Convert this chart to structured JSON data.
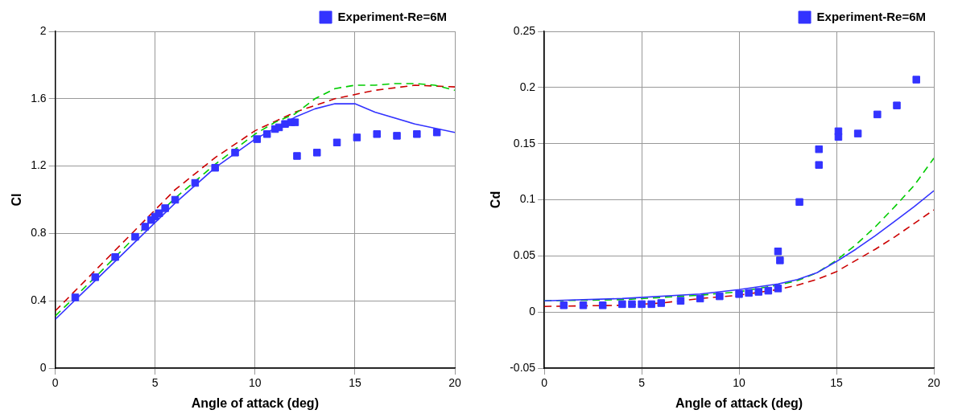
{
  "chart_data": [
    {
      "type": "line",
      "xlabel": "Angle of attack (deg)",
      "ylabel": "Cl",
      "xlim": [
        0,
        20
      ],
      "xticks": [
        0,
        5,
        10,
        15,
        20
      ],
      "ylim": [
        0,
        2
      ],
      "yticks": [
        0,
        0.4,
        0.8,
        1.2,
        1.6,
        2
      ],
      "grid": true,
      "legend": "top right",
      "series": [
        {
          "type": "scatter",
          "name": "Experiment-Re=6M",
          "color": "#3333ff",
          "marker": "square",
          "x": [
            1,
            2,
            3,
            4,
            4.5,
            4.8,
            5,
            5.2,
            5.5,
            6,
            7,
            8,
            9,
            10.1,
            10.6,
            11,
            11.2,
            11.5,
            11.8,
            12,
            12.1,
            13.1,
            14.1,
            15.1,
            16.1,
            17.1,
            18.1,
            19.1
          ],
          "values": [
            0.42,
            0.54,
            0.66,
            0.78,
            0.84,
            0.88,
            0.9,
            0.92,
            0.95,
            1.0,
            1.1,
            1.19,
            1.28,
            1.36,
            1.39,
            1.42,
            1.43,
            1.45,
            1.46,
            1.46,
            1.26,
            1.28,
            1.34,
            1.37,
            1.39,
            1.38,
            1.39,
            1.4
          ]
        },
        {
          "color": "#3333ff",
          "line_style": "solid",
          "x": [
            0,
            2,
            4,
            6,
            8,
            10,
            12,
            13,
            14,
            15,
            16,
            18,
            20
          ],
          "values": [
            0.29,
            0.52,
            0.75,
            0.98,
            1.19,
            1.36,
            1.49,
            1.54,
            1.57,
            1.57,
            1.52,
            1.45,
            1.4
          ]
        },
        {
          "color": "#00cc00",
          "line_style": "dashed",
          "x": [
            0,
            2,
            4,
            6,
            8,
            10,
            11,
            12,
            13,
            14,
            15,
            16,
            17,
            18,
            19,
            20
          ],
          "values": [
            0.31,
            0.54,
            0.78,
            1.01,
            1.21,
            1.39,
            1.46,
            1.51,
            1.6,
            1.66,
            1.68,
            1.68,
            1.69,
            1.69,
            1.68,
            1.65
          ]
        },
        {
          "color": "#cc0000",
          "line_style": "dashed",
          "x": [
            0,
            2,
            4,
            6,
            8,
            10,
            12,
            14,
            16,
            18,
            20
          ],
          "values": [
            0.34,
            0.58,
            0.82,
            1.06,
            1.25,
            1.41,
            1.52,
            1.6,
            1.65,
            1.68,
            1.67
          ]
        }
      ]
    },
    {
      "type": "line",
      "xlabel": "Angle of attack (deg)",
      "ylabel": "Cd",
      "xlim": [
        0,
        20
      ],
      "xticks": [
        0,
        5,
        10,
        15,
        20
      ],
      "ylim": [
        -0.05,
        0.25
      ],
      "yticks": [
        -0.05,
        0,
        0.05,
        0.1,
        0.15,
        0.2,
        0.25
      ],
      "grid": true,
      "legend": "top right",
      "series": [
        {
          "type": "scatter",
          "name": "Experiment-Re=6M",
          "color": "#3333ff",
          "marker": "square",
          "x": [
            1,
            2,
            3,
            4,
            4.5,
            5,
            5.5,
            6,
            7,
            8,
            9,
            10,
            10.5,
            11,
            11.5,
            12,
            12,
            12.1,
            13.1,
            14.1,
            14.1,
            15.1,
            15.1,
            16.1,
            17.1,
            18.1,
            19.1
          ],
          "values": [
            0.006,
            0.006,
            0.006,
            0.007,
            0.007,
            0.007,
            0.007,
            0.008,
            0.01,
            0.012,
            0.014,
            0.016,
            0.017,
            0.018,
            0.019,
            0.021,
            0.054,
            0.046,
            0.098,
            0.145,
            0.131,
            0.161,
            0.156,
            0.159,
            0.176,
            0.184,
            0.207
          ]
        },
        {
          "color": "#3333ff",
          "line_style": "solid",
          "x": [
            0,
            4,
            8,
            10,
            12,
            13,
            14,
            15,
            16,
            17,
            18,
            19,
            20
          ],
          "values": [
            0.01,
            0.012,
            0.016,
            0.02,
            0.025,
            0.029,
            0.035,
            0.045,
            0.056,
            0.068,
            0.081,
            0.094,
            0.108
          ]
        },
        {
          "color": "#00cc00",
          "line_style": "dashed",
          "x": [
            0,
            4,
            8,
            10,
            12,
            13,
            14,
            15,
            16,
            17,
            18,
            19,
            20
          ],
          "values": [
            0.01,
            0.011,
            0.015,
            0.018,
            0.024,
            0.028,
            0.035,
            0.046,
            0.06,
            0.076,
            0.094,
            0.113,
            0.137
          ]
        },
        {
          "color": "#cc0000",
          "line_style": "dashed",
          "x": [
            0,
            4,
            6,
            8,
            10,
            12,
            13,
            14,
            15,
            16,
            17,
            18,
            19,
            20
          ],
          "values": [
            0.005,
            0.006,
            0.008,
            0.012,
            0.015,
            0.02,
            0.024,
            0.029,
            0.036,
            0.046,
            0.056,
            0.067,
            0.079,
            0.091
          ]
        }
      ]
    }
  ]
}
